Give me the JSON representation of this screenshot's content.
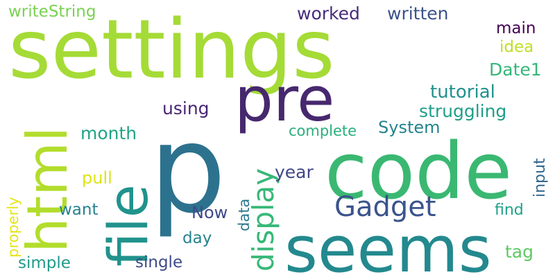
{
  "words": [
    {
      "id": "p",
      "text": "p",
      "color": "#2c728e",
      "vertical": false
    },
    {
      "id": "settings",
      "text": "settings",
      "color": "#a5db36",
      "vertical": false
    },
    {
      "id": "code",
      "text": "code",
      "color": "#3ab872",
      "vertical": false
    },
    {
      "id": "seems",
      "text": "seems",
      "color": "#23898e",
      "vertical": false
    },
    {
      "id": "pre",
      "text": "pre",
      "color": "#46286e",
      "vertical": false
    },
    {
      "id": "file",
      "text": "file",
      "color": "#20928c",
      "vertical": true
    },
    {
      "id": "html",
      "text": "html",
      "color": "#b2dd2c",
      "vertical": true
    },
    {
      "id": "gadget",
      "text": "Gadget",
      "color": "#3a548c",
      "vertical": false
    },
    {
      "id": "display",
      "text": "display",
      "color": "#37b878",
      "vertical": true
    },
    {
      "id": "writestring",
      "text": "writeString",
      "color": "#7ad151",
      "vertical": false
    },
    {
      "id": "worked",
      "text": "worked",
      "color": "#472d7b",
      "vertical": false
    },
    {
      "id": "written",
      "text": "written",
      "color": "#3b528b",
      "vertical": false
    },
    {
      "id": "main",
      "text": "main",
      "color": "#440154",
      "vertical": false
    },
    {
      "id": "idea",
      "text": "idea",
      "color": "#bddf26",
      "vertical": false
    },
    {
      "id": "date1",
      "text": "Date1",
      "color": "#35b779",
      "vertical": false
    },
    {
      "id": "tutorial",
      "text": "tutorial",
      "color": "#21918c",
      "vertical": false
    },
    {
      "id": "using",
      "text": "using",
      "color": "#482576",
      "vertical": false
    },
    {
      "id": "struggling",
      "text": "struggling",
      "color": "#1f9e89",
      "vertical": false
    },
    {
      "id": "system",
      "text": "System",
      "color": "#25838e",
      "vertical": false
    },
    {
      "id": "complete",
      "text": "complete",
      "color": "#29af7f",
      "vertical": false
    },
    {
      "id": "month",
      "text": "month",
      "color": "#20a486",
      "vertical": false
    },
    {
      "id": "properly",
      "text": "properly",
      "color": "#e5e419",
      "vertical": true
    },
    {
      "id": "pull",
      "text": "pull",
      "color": "#dde318",
      "vertical": false
    },
    {
      "id": "year",
      "text": "year",
      "color": "#404688",
      "vertical": false
    },
    {
      "id": "input",
      "text": "input",
      "color": "#31688e",
      "vertical": true
    },
    {
      "id": "want",
      "text": "want",
      "color": "#26828e",
      "vertical": false
    },
    {
      "id": "data",
      "text": "data",
      "color": "#2a788e",
      "vertical": true
    },
    {
      "id": "now",
      "text": "Now",
      "color": "#3e4989",
      "vertical": false
    },
    {
      "id": "find",
      "text": "find",
      "color": "#1fa188",
      "vertical": false
    },
    {
      "id": "day",
      "text": "day",
      "color": "#26828e",
      "vertical": false
    },
    {
      "id": "tag",
      "text": "tag",
      "color": "#5ec962",
      "vertical": false
    },
    {
      "id": "simple",
      "text": "simple",
      "color": "#1f9a8a",
      "vertical": false
    },
    {
      "id": "single",
      "text": "single",
      "color": "#3e4a89",
      "vertical": false
    }
  ]
}
